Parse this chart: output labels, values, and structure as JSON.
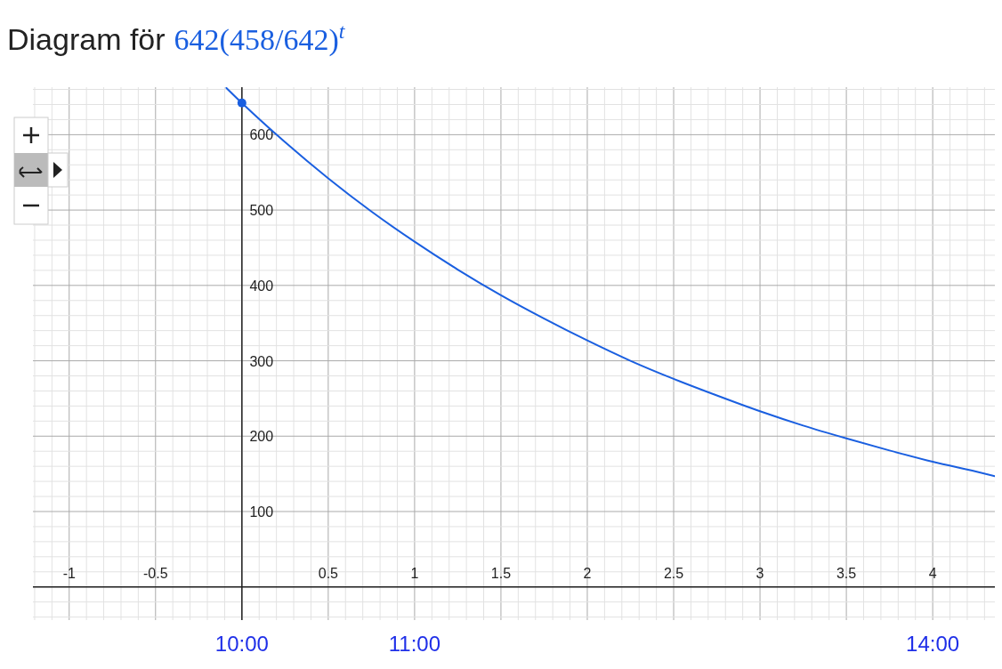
{
  "chart_data": {
    "type": "line",
    "title": "Diagram för",
    "xlim": [
      -1.21,
      4.36
    ],
    "ylim": [
      -44,
      663
    ],
    "xticks": [
      -1,
      -0.5,
      0.5,
      1,
      1.5,
      2,
      2.5,
      3,
      3.5,
      4
    ],
    "yticks": [
      100,
      200,
      300,
      400,
      500,
      600
    ],
    "grid": true,
    "series": [
      {
        "name": "642(458/642)$^{t}$",
        "color": "#1a5fe0",
        "x": [
          -0.09,
          0,
          0.25,
          0.5,
          0.75,
          1,
          1.25,
          1.5,
          1.75,
          2,
          2.25,
          2.5,
          2.75,
          3,
          3.25,
          3.5,
          3.75,
          4,
          4.25,
          4.36
        ],
        "values": [
          662,
          642,
          590,
          542,
          498,
          458,
          421,
          387,
          356,
          327,
          300,
          276,
          254,
          233,
          214,
          197,
          181,
          166,
          153,
          147
        ]
      },
      {
        "type": "scatter",
        "marker": "circle",
        "color": "#1a5fe0",
        "x": [
          0
        ],
        "values": [
          642
        ]
      }
    ],
    "x2lim": [
      8.79,
      14.36
    ],
    "x2ticks": [
      {
        "value": 10,
        "label": "10:00"
      },
      {
        "value": 11,
        "label": "11:00"
      },
      {
        "value": 14,
        "label": "14:00"
      }
    ]
  }
}
